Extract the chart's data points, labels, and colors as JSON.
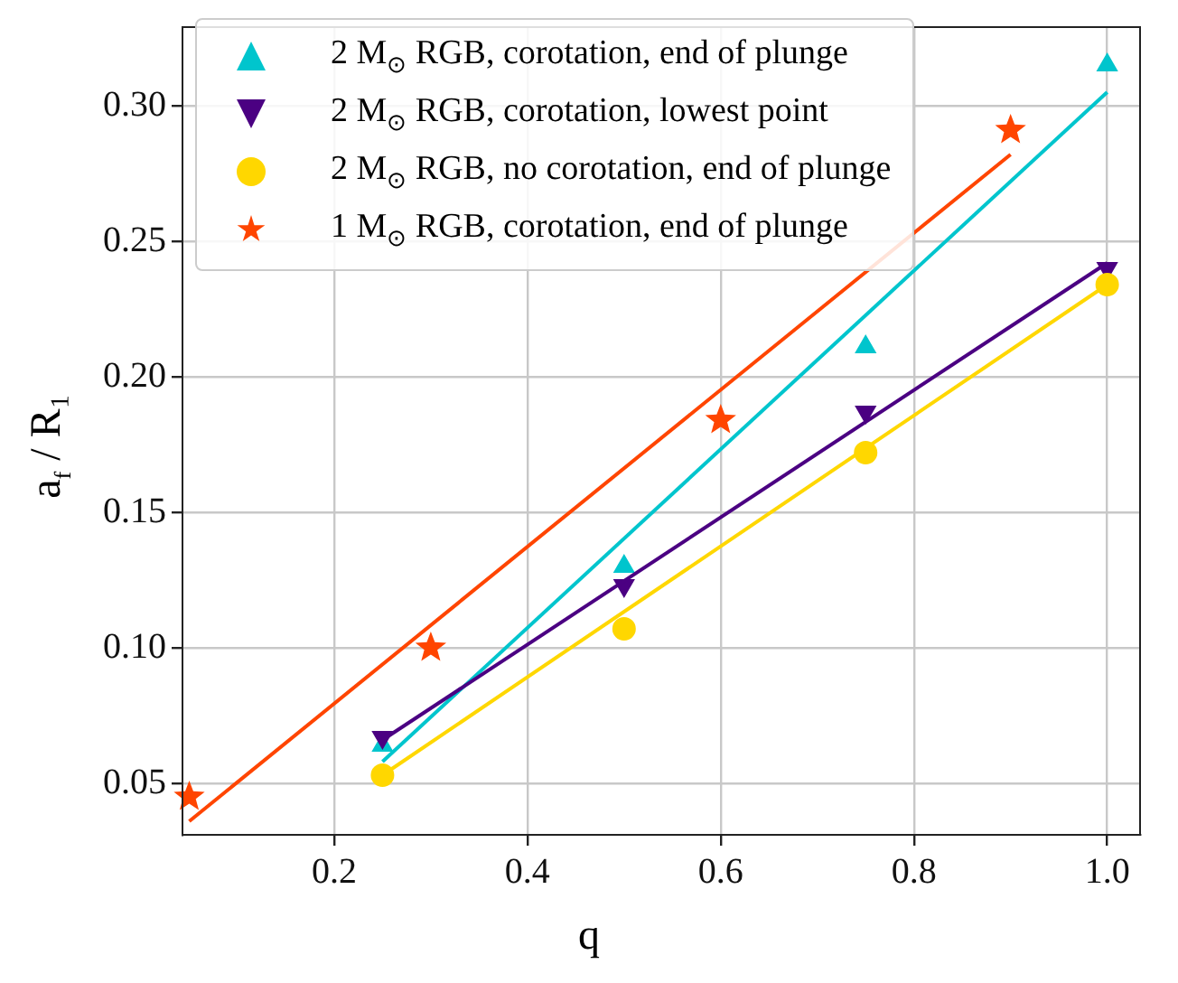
{
  "chart_data": {
    "type": "scatter",
    "xlabel": "q",
    "ylabel": "a$_{f}$ / R₁",
    "xlim": [
      0.043,
      1.034
    ],
    "ylim": [
      0.031,
      0.329
    ],
    "xticks": [
      0.2,
      0.4,
      0.6,
      0.8,
      {
        "value": 1.0,
        "label": "1.0"
      }
    ],
    "yticks": [
      0.05,
      {
        "value": 0.1,
        "label": "0.10"
      },
      0.15,
      {
        "value": 0.2,
        "label": "0.20"
      },
      0.25,
      {
        "value": 0.3,
        "label": "0.30"
      }
    ],
    "grid": true,
    "legend": "top left",
    "series": [
      {
        "name": "2 M$_{⊙}$ RGB, corotation, end of plunge",
        "type": "scatter",
        "marker": "triangle",
        "color": "#00c5cd",
        "x": [
          0.25,
          0.5,
          0.75,
          1.0
        ],
        "values": [
          0.064,
          0.13,
          0.211,
          0.315
        ]
      },
      {
        "name": "2 M$_{⊙}$ RGB, corotation, lowest point",
        "type": "scatter",
        "marker": "triangle_down",
        "color": "#4b0082",
        "x": [
          0.25,
          0.5,
          0.75,
          1.0
        ],
        "values": [
          0.067,
          0.123,
          0.187,
          0.24
        ]
      },
      {
        "name": "2 M$_{⊙}$ RGB, no corotation, end of plunge",
        "type": "scatter",
        "marker": "circle",
        "color": "#ffd700",
        "x": [
          0.25,
          0.5,
          0.75,
          1.0
        ],
        "values": [
          0.053,
          0.107,
          0.172,
          0.234
        ]
      },
      {
        "name": "1 M$_{⊙}$ RGB, corotation, end of plunge",
        "type": "scatter",
        "marker": "star",
        "color": "#ff4500",
        "x": [
          0.05,
          0.3,
          0.6,
          0.9
        ],
        "values": [
          0.045,
          0.1,
          0.184,
          0.291
        ]
      },
      {
        "type": "line",
        "marker": "none",
        "color": "#00c5cd",
        "x": [
          0.25,
          1.0
        ],
        "values": [
          0.058,
          0.305
        ]
      },
      {
        "type": "line",
        "marker": "none",
        "color": "#4b0082",
        "x": [
          0.25,
          1.0
        ],
        "values": [
          0.066,
          0.242
        ]
      },
      {
        "type": "line",
        "marker": "none",
        "color": "#ffd700",
        "x": [
          0.25,
          1.0
        ],
        "values": [
          0.053,
          0.234
        ]
      },
      {
        "type": "line",
        "marker": "none",
        "color": "#ff4500",
        "x": [
          0.05,
          0.9
        ],
        "values": [
          0.036,
          0.282
        ]
      }
    ]
  }
}
